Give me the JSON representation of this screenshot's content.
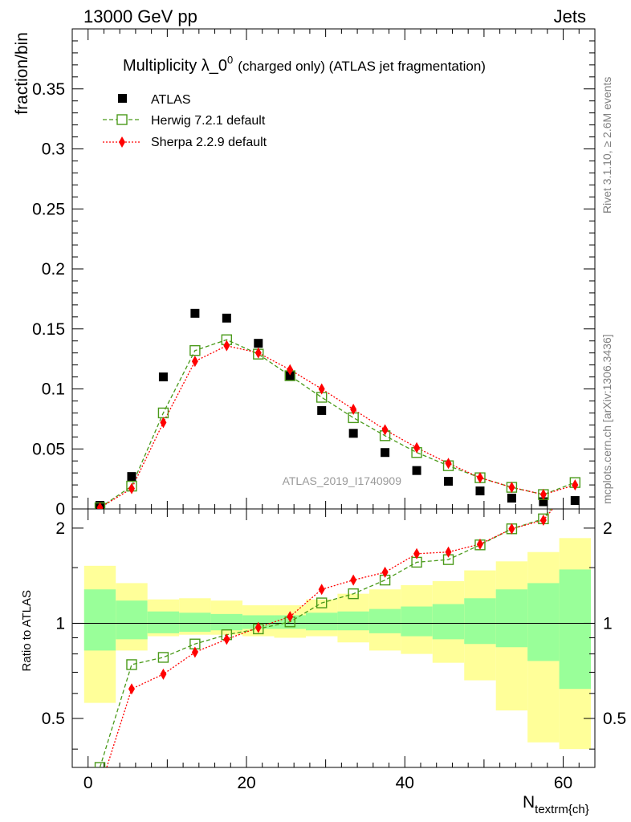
{
  "header": {
    "left": "13000 GeV pp",
    "right": "Jets"
  },
  "title": {
    "main": "Multiplicity λ_0",
    "superscript": "0",
    "suffix": "(charged only) (ATLAS jet fragmentation)"
  },
  "side_labels": {
    "rivet": "Rivet 3.1.10, ≥ 2.6M events",
    "mcplots": "mcplots.cern.ch [arXiv:1306.3436]"
  },
  "analysis_label": "ATLAS_2019_I1740909",
  "legend": {
    "atlas": "ATLAS",
    "herwig": "Herwig 7.2.1 default",
    "sherpa": "Sherpa 2.2.9 default"
  },
  "colors": {
    "atlas": "#000000",
    "herwig": "#4a9a1a",
    "sherpa": "#ff0000",
    "band_inner": "#99ff99",
    "band_outer": "#ffff99"
  },
  "chart_data": [
    {
      "type": "scatter",
      "panel": "main",
      "ylabel": "fraction/bin",
      "xlim": [
        -2,
        64
      ],
      "ylim": [
        0,
        0.4
      ],
      "yticks": [
        0,
        0.05,
        0.1,
        0.15,
        0.2,
        0.25,
        0.3,
        0.35
      ],
      "ytick_labels": [
        "0",
        "0.05",
        "0.1",
        "0.15",
        "0.2",
        "0.25",
        "0.3",
        "0.35"
      ],
      "x": [
        1.5,
        5.5,
        9.5,
        13.5,
        17.5,
        21.5,
        25.5,
        29.5,
        33.5,
        37.5,
        41.5,
        45.5,
        49.5,
        53.5,
        57.5,
        61.5
      ],
      "series": [
        {
          "name": "ATLAS",
          "marker": "filled-square",
          "values": [
            0.003,
            0.027,
            0.11,
            0.163,
            0.159,
            0.138,
            0.111,
            0.082,
            0.063,
            0.047,
            0.032,
            0.023,
            0.015,
            0.009,
            0.006,
            0.007
          ]
        },
        {
          "name": "Herwig 7.2.1 default",
          "marker": "open-square",
          "line": "dashed",
          "values": [
            0.001,
            0.019,
            0.08,
            0.132,
            0.141,
            0.129,
            0.111,
            0.093,
            0.076,
            0.061,
            0.047,
            0.036,
            0.026,
            0.018,
            0.012,
            0.022
          ]
        },
        {
          "name": "Sherpa 2.2.9 default",
          "marker": "diamond",
          "line": "dotted",
          "values": [
            0.001,
            0.017,
            0.072,
            0.123,
            0.136,
            0.13,
            0.116,
            0.1,
            0.083,
            0.066,
            0.051,
            0.038,
            0.026,
            0.018,
            0.012,
            0.02
          ]
        }
      ]
    },
    {
      "type": "line",
      "panel": "ratio",
      "ylabel": "Ratio to ATLAS",
      "xlabel": "N",
      "xlabel_sub": "textrm{ch}",
      "xlim": [
        -2,
        64
      ],
      "ylim": [
        0.35,
        2.3
      ],
      "xticks": [
        0,
        20,
        40,
        60
      ],
      "xtick_labels": [
        "0",
        "20",
        "40",
        "60"
      ],
      "yticks": [
        0.5,
        1,
        2
      ],
      "ytick_labels": [
        "0.5",
        "1",
        "2"
      ],
      "x": [
        1.5,
        5.5,
        9.5,
        13.5,
        17.5,
        21.5,
        25.5,
        29.5,
        33.5,
        37.5,
        41.5,
        45.5,
        49.5,
        53.5,
        57.5,
        61.5
      ],
      "bin_edges": [
        -0.5,
        3.5,
        7.5,
        11.5,
        15.5,
        19.5,
        23.5,
        27.5,
        31.5,
        35.5,
        39.5,
        43.5,
        47.5,
        51.5,
        55.5,
        59.5,
        63.5
      ],
      "band_inner": {
        "low": [
          0.82,
          0.89,
          0.93,
          0.94,
          0.95,
          0.96,
          0.96,
          0.95,
          0.95,
          0.93,
          0.91,
          0.89,
          0.86,
          0.84,
          0.76,
          0.62
        ],
        "high": [
          1.28,
          1.18,
          1.09,
          1.08,
          1.07,
          1.06,
          1.06,
          1.08,
          1.09,
          1.11,
          1.13,
          1.15,
          1.2,
          1.28,
          1.34,
          1.48
        ]
      },
      "band_outer": {
        "low": [
          0.56,
          0.82,
          0.91,
          0.92,
          0.92,
          0.91,
          0.9,
          0.91,
          0.87,
          0.82,
          0.8,
          0.75,
          0.66,
          0.53,
          0.42,
          0.4
        ]
      },
      "band_outer_high": [
        1.52,
        1.34,
        1.19,
        1.2,
        1.18,
        1.14,
        1.14,
        1.19,
        1.24,
        1.28,
        1.32,
        1.36,
        1.47,
        1.57,
        1.68,
        1.86
      ],
      "series": [
        {
          "name": "Herwig 7.2.1 default",
          "values": [
            0.35,
            0.74,
            0.78,
            0.86,
            0.92,
            0.96,
            1.01,
            1.16,
            1.24,
            1.37,
            1.56,
            1.59,
            1.77,
            1.99,
            2.14,
            2.9
          ]
        },
        {
          "name": "Sherpa 2.2.9 default",
          "values": [
            0.3,
            0.62,
            0.69,
            0.81,
            0.89,
            0.97,
            1.05,
            1.28,
            1.37,
            1.45,
            1.66,
            1.68,
            1.78,
            1.99,
            2.12,
            2.8
          ]
        }
      ]
    }
  ]
}
